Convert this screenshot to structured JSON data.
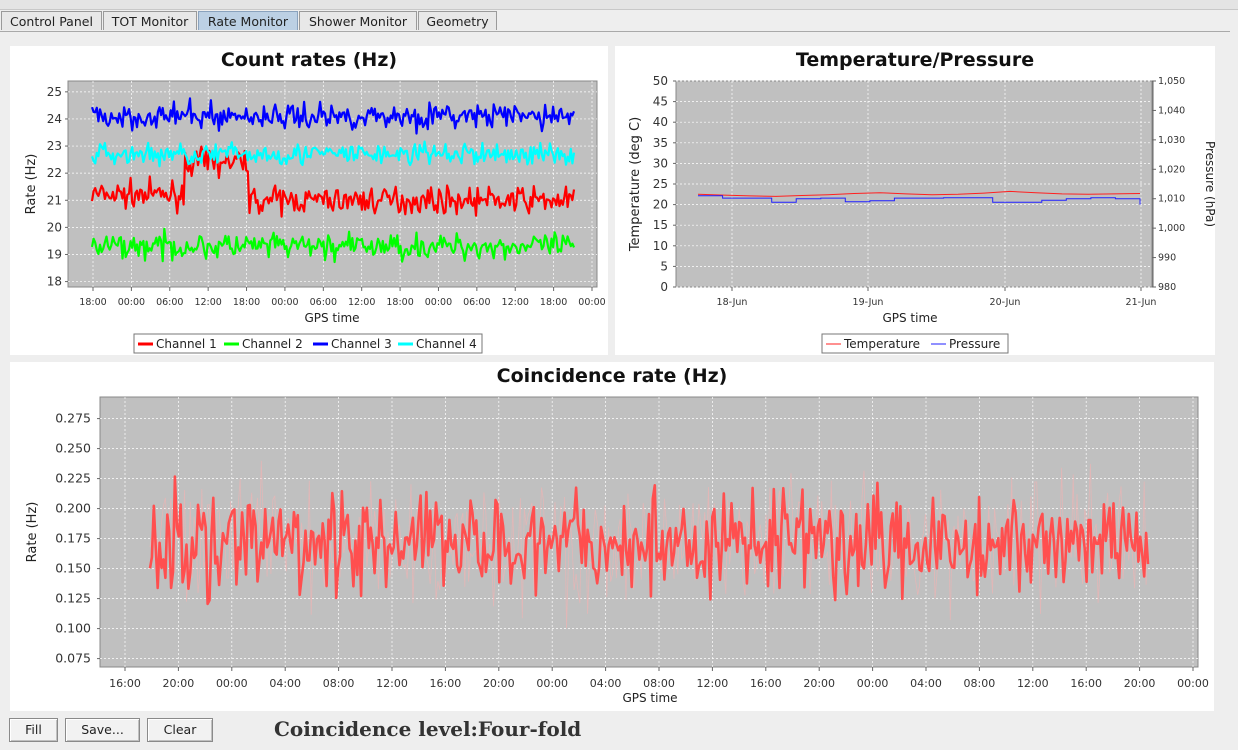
{
  "tabs": [
    {
      "label": "Control Panel",
      "active": false
    },
    {
      "label": "TOT Monitor",
      "active": false
    },
    {
      "label": "Rate Monitor",
      "active": true
    },
    {
      "label": "Shower Monitor",
      "active": false
    },
    {
      "label": "Geometry",
      "active": false
    }
  ],
  "buttons": {
    "fill": "Fill",
    "save": "Save...",
    "clear": "Clear"
  },
  "coincidence_level": "Coincidence level:Four-fold",
  "colors": {
    "plot_bg": "#c0c0c0",
    "grid": "#ffffff"
  },
  "chart_data": [
    {
      "type": "line",
      "title": "Count rates (Hz)",
      "xlabel": "GPS time",
      "ylabel": "Rate (Hz)",
      "x_ticks": [
        "18:00",
        "00:00",
        "06:00",
        "12:00",
        "18:00",
        "00:00",
        "06:00",
        "12:00",
        "18:00",
        "00:00",
        "06:00",
        "12:00",
        "18:00",
        "00:00"
      ],
      "ylim": [
        17.8,
        25.4
      ],
      "y_ticks": [
        18,
        19,
        20,
        21,
        22,
        23,
        24,
        25
      ],
      "legend_position": "bottom",
      "series": [
        {
          "name": "Channel 1",
          "color": "#ff0000",
          "segments": [
            {
              "from": 0.0,
              "to": 0.19,
              "level": 21.2
            },
            {
              "from": 0.19,
              "to": 0.325,
              "level": 22.4
            },
            {
              "from": 0.325,
              "to": 1.0,
              "level": 21.0
            }
          ],
          "noise": 0.8
        },
        {
          "name": "Channel 2",
          "color": "#00ff00",
          "segments": [
            {
              "from": 0.0,
              "to": 1.0,
              "level": 19.3
            }
          ],
          "noise": 0.8
        },
        {
          "name": "Channel 3",
          "color": "#0000ff",
          "segments": [
            {
              "from": 0.0,
              "to": 1.0,
              "level": 24.1
            }
          ],
          "noise": 0.8
        },
        {
          "name": "Channel 4",
          "color": "#00ffff",
          "segments": [
            {
              "from": 0.0,
              "to": 1.0,
              "level": 22.7
            }
          ],
          "noise": 0.7
        }
      ]
    },
    {
      "type": "line",
      "title": "Temperature/Pressure",
      "xlabel": "GPS time",
      "ylabel": "Temperature (deg C)",
      "y2label": "Pressure (hPa)",
      "x_ticks": [
        "18-Jun",
        "19-Jun",
        "20-Jun",
        "21-Jun"
      ],
      "ylim": [
        0,
        50
      ],
      "y_ticks": [
        0,
        5,
        10,
        15,
        20,
        25,
        30,
        35,
        40,
        45,
        50
      ],
      "y2lim": [
        980,
        1050
      ],
      "y2_ticks": [
        "980",
        "990",
        "1,000",
        "1,010",
        "1,020",
        "1,030",
        "1,040",
        "1,050"
      ],
      "legend_position": "bottom",
      "series": [
        {
          "name": "Temperature",
          "color": "#ff2020",
          "values": [
            22.5,
            22.3,
            22.1,
            22.0,
            22.2,
            22.4,
            22.7,
            22.9,
            22.6,
            22.4,
            22.5,
            22.8,
            23.2,
            22.9,
            22.6,
            22.5,
            22.6,
            22.7
          ]
        },
        {
          "name": "Pressure",
          "color": "#2020ff",
          "values": [
            1011.0,
            1010.2,
            1010.2,
            1008.8,
            1010.0,
            1010.2,
            1009.0,
            1009.3,
            1010.2,
            1010.2,
            1010.3,
            1010.3,
            1008.8,
            1008.8,
            1009.5,
            1010.0,
            1010.3,
            1010.0,
            1008.0
          ]
        }
      ]
    },
    {
      "type": "line",
      "title": "Coincidence rate (Hz)",
      "xlabel": "GPS time",
      "ylabel": "Rate (Hz)",
      "x_ticks": [
        "16:00",
        "20:00",
        "00:00",
        "04:00",
        "08:00",
        "12:00",
        "16:00",
        "20:00",
        "00:00",
        "04:00",
        "08:00",
        "12:00",
        "16:00",
        "20:00",
        "00:00",
        "04:00",
        "08:00",
        "12:00",
        "16:00",
        "20:00",
        "00:00"
      ],
      "ylim": [
        0.068,
        0.293
      ],
      "y_ticks": [
        "0.075",
        "0.100",
        "0.125",
        "0.150",
        "0.175",
        "0.200",
        "0.225",
        "0.250",
        "0.275"
      ],
      "series": [
        {
          "name": "",
          "color": "#ff4f4f",
          "mean": 0.172,
          "spread": 0.045,
          "min": 0.1,
          "max": 0.258
        }
      ]
    }
  ]
}
